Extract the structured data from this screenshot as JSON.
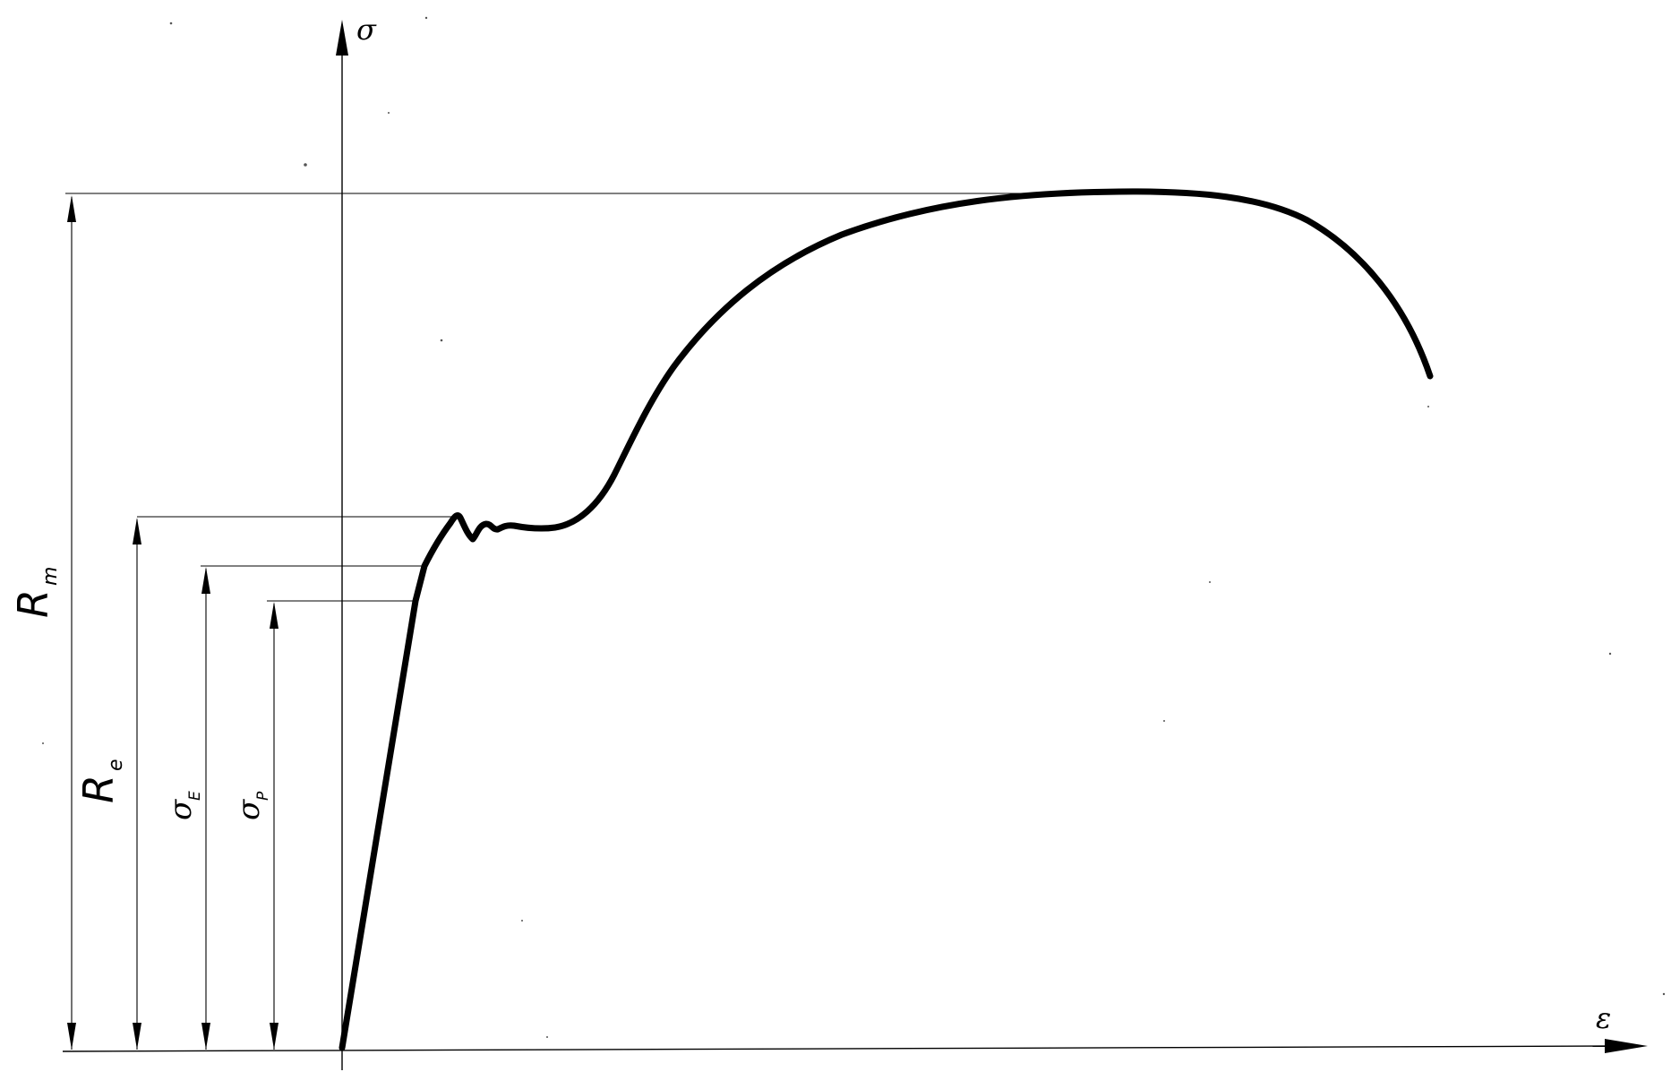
{
  "axes": {
    "y_label": "σ",
    "x_label": "ε"
  },
  "levels": [
    {
      "key": "Rm",
      "main": "R",
      "sub": "m"
    },
    {
      "key": "Re",
      "main": "R",
      "sub": "e"
    },
    {
      "key": "sigmaE",
      "main": "σ",
      "sub": "E"
    },
    {
      "key": "sigmaP",
      "main": "σ",
      "sub": "P"
    }
  ],
  "chart_data": {
    "type": "line",
    "title": "",
    "xlabel": "ε",
    "ylabel": "σ",
    "curve": "stress-strain",
    "reference_levels": [
      "R_m",
      "R_e",
      "σ_E",
      "σ_P"
    ],
    "grid": false
  }
}
